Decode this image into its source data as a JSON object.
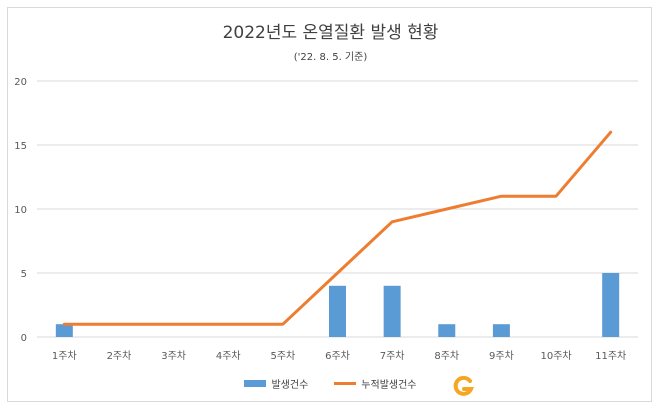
{
  "chart_data": {
    "type": "bar+line",
    "title": "2022년도 온열질환 발생 현황",
    "subtitle": "('22. 8. 5. 기준)",
    "categories": [
      "1주차",
      "2주차",
      "3주차",
      "4주차",
      "5주차",
      "6주차",
      "7주차",
      "8주차",
      "9주차",
      "10주차",
      "11주차"
    ],
    "series": [
      {
        "name": "발생건수",
        "type": "bar",
        "color": "#5b9bd5",
        "values": [
          1,
          0,
          0,
          0,
          0,
          4,
          4,
          1,
          1,
          0,
          5
        ]
      },
      {
        "name": "누적발생건수",
        "type": "line",
        "color": "#ed7d31",
        "values": [
          1,
          1,
          1,
          1,
          1,
          5,
          9,
          10,
          11,
          11,
          16
        ]
      }
    ],
    "ylim": [
      0,
      20
    ],
    "yticks": [
      0,
      5,
      10,
      15,
      20
    ],
    "grid": true,
    "legend": "bottom"
  }
}
